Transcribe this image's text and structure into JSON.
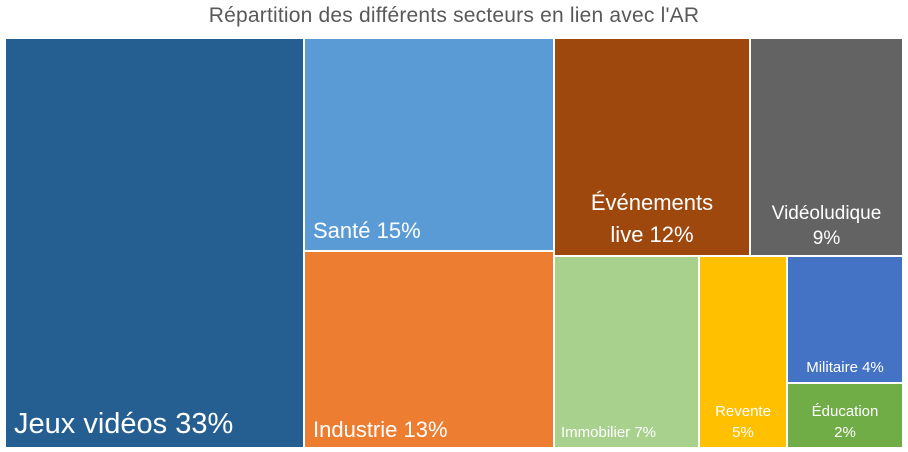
{
  "chart_data": {
    "type": "treemap",
    "title": "Répartition des différents secteurs en lien avec l'AR",
    "items": [
      {
        "key": "jeux",
        "label": "Jeux vidéos 33%",
        "value": 33,
        "color": "#255E91"
      },
      {
        "key": "sante",
        "label": "Santé 15%",
        "value": 15,
        "color": "#5B9BD5"
      },
      {
        "key": "industrie",
        "label": "Industrie 13%",
        "value": 13,
        "color": "#ED7D31"
      },
      {
        "key": "evenements",
        "label": "Événements live 12%",
        "value": 12,
        "color": "#9E480E"
      },
      {
        "key": "videoludique",
        "label": "Vidéoludique 9%",
        "value": 9,
        "color": "#636363"
      },
      {
        "key": "immobilier",
        "label": "Immobilier 7%",
        "value": 7,
        "color": "#A9D18E"
      },
      {
        "key": "revente",
        "label": "Revente 5%",
        "value": 5,
        "color": "#FFC000"
      },
      {
        "key": "militaire",
        "label": "Militaire 4%",
        "value": 4,
        "color": "#4472C4"
      },
      {
        "key": "education",
        "label": "Éducation 2%",
        "value": 2,
        "color": "#70AD47"
      }
    ]
  },
  "tiles": {
    "jeux": {
      "line1": "Jeux vidéos 33%"
    },
    "sante": {
      "line1": "Santé 15%"
    },
    "industrie": {
      "line1": "Industrie 13%"
    },
    "evenements": {
      "line1": "Événements",
      "line2": "live 12%"
    },
    "videoludique": {
      "line1": "Vidéoludique",
      "line2": "9%"
    },
    "immobilier": {
      "line1": "Immobilier 7%"
    },
    "revente": {
      "line1": "Revente",
      "line2": "5%"
    },
    "militaire": {
      "line1": "Militaire 4%"
    },
    "education": {
      "line1": "Éducation",
      "line2": "2%"
    }
  }
}
